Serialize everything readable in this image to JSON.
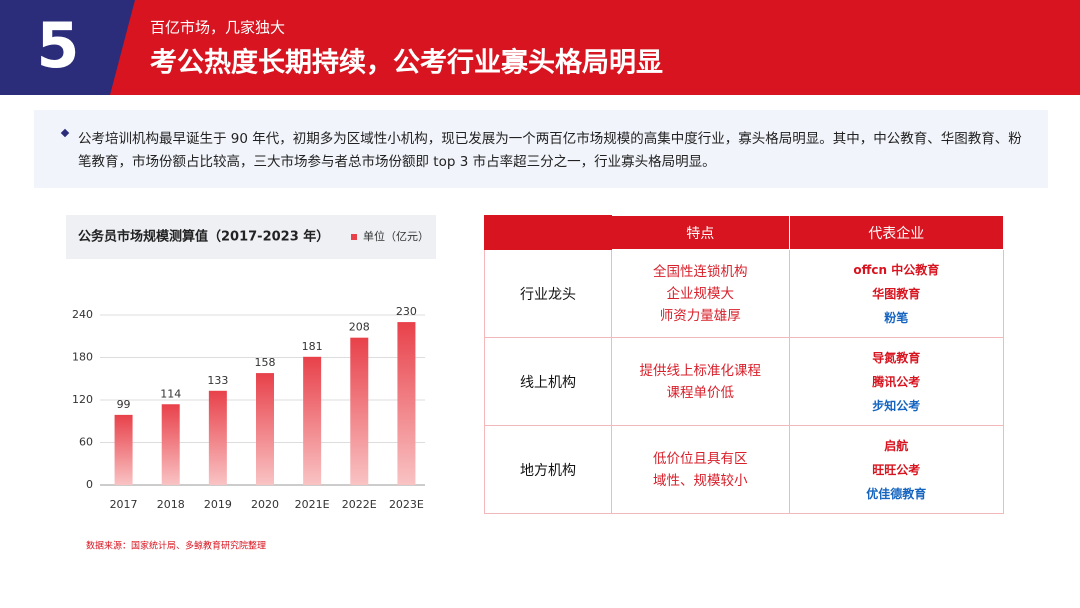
{
  "header": {
    "number": "5",
    "subtitle": "百亿市场，几家独大",
    "title": "考公热度长期持续，公考行业寡头格局明显"
  },
  "summary": "公考培训机构最早诞生于 90 年代，初期多为区域性小机构，现已发展为一个两百亿市场规模的高集中度行业，寡头格局明显。其中，中公教育、华图教育、粉笔教育，市场份额占比较高，三大市场参与者总市场份额即 top 3 市占率超三分之一，行业寡头格局明显。",
  "chart_data": {
    "type": "bar",
    "title": "公务员市场规模测算值（2017-2023 年）",
    "series_name": "单位（亿元）",
    "categories": [
      "2017",
      "2018",
      "2019",
      "2020",
      "2021E",
      "2022E",
      "2023E"
    ],
    "values": [
      99,
      114,
      133,
      158,
      181,
      208,
      230
    ],
    "color": "#e8414a",
    "ylim": [
      0,
      240
    ],
    "yticks": [
      0,
      60,
      120,
      180,
      240
    ],
    "grid": true,
    "source": "数据来源：国家统计局、多鲸教育研究院整理"
  },
  "table": {
    "columns": [
      "特点",
      "代表企业"
    ],
    "rows": [
      {
        "label": "行业龙头",
        "features": [
          "全国性连锁机构",
          "企业规模大",
          "师资力量雄厚"
        ],
        "companies": [
          "offcn 中公教育",
          "华图教育",
          "粉笔"
        ]
      },
      {
        "label": "线上机构",
        "features": [
          "提供线上标准化课程",
          "课程单价低"
        ],
        "companies": [
          "导氮教育",
          "腾讯公考",
          "步知公考"
        ]
      },
      {
        "label": "地方机构",
        "features": [
          "低价位且具有区",
          "域性、规模较小"
        ],
        "companies": [
          "启航",
          "旺旺公考",
          "优佳德教育"
        ]
      }
    ]
  }
}
